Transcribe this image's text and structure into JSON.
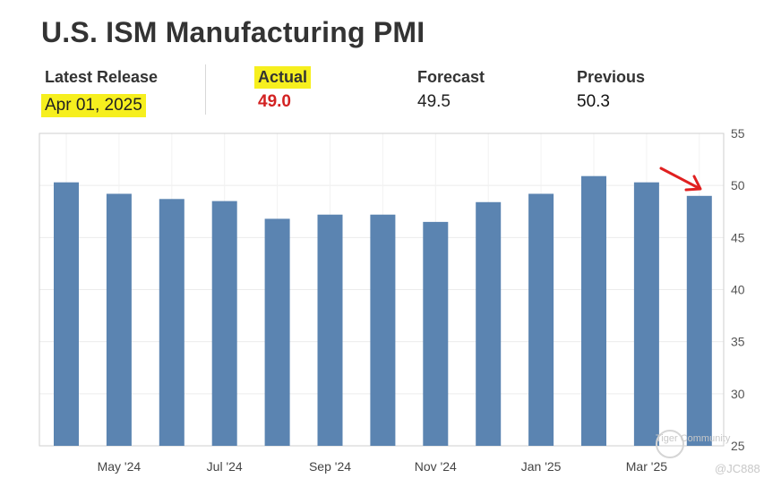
{
  "title": "U.S. ISM Manufacturing PMI",
  "stats": {
    "latest_release": {
      "label": "Latest Release",
      "value": "Apr 01, 2025"
    },
    "actual": {
      "label": "Actual",
      "value": "49.0"
    },
    "forecast": {
      "label": "Forecast",
      "value": "49.5"
    },
    "previous": {
      "label": "Previous",
      "value": "50.3"
    }
  },
  "colors": {
    "bar": "#5b84b1",
    "highlight": "#f6ef1e",
    "actual": "#d32222",
    "arrow": "#e02020"
  },
  "watermark": {
    "brand": "Tiger Community",
    "user": "@JC888"
  },
  "chart_data": {
    "type": "bar",
    "title": "U.S. ISM Manufacturing PMI",
    "categories": [
      "Apr '24",
      "May '24",
      "Jun '24",
      "Jul '24",
      "Aug '24",
      "Sep '24",
      "Oct '24",
      "Nov '24",
      "Dec '24",
      "Jan '25",
      "Feb '25",
      "Mar '25",
      "Apr '25"
    ],
    "values": [
      50.3,
      49.2,
      48.7,
      48.5,
      46.8,
      47.2,
      47.2,
      46.5,
      48.4,
      49.2,
      50.9,
      50.3,
      49.0
    ],
    "x_tick_labels": [
      "May '24",
      "Jul '24",
      "Sep '24",
      "Nov '24",
      "Jan '25",
      "Mar '25"
    ],
    "x_tick_categories": [
      "May '24",
      "Jul '24",
      "Sep '24",
      "Nov '24",
      "Jan '25",
      "Mar '25"
    ],
    "y_ticks": [
      "25",
      "30",
      "35",
      "40",
      "45",
      "50",
      "55"
    ],
    "y_tick_values": [
      25,
      30,
      35,
      40,
      45,
      50,
      55
    ],
    "ylim": [
      25,
      55
    ],
    "y_axis_side": "right",
    "grid": true,
    "annotation": "red arrow pointing at latest bar",
    "xlabel": "",
    "ylabel": ""
  }
}
